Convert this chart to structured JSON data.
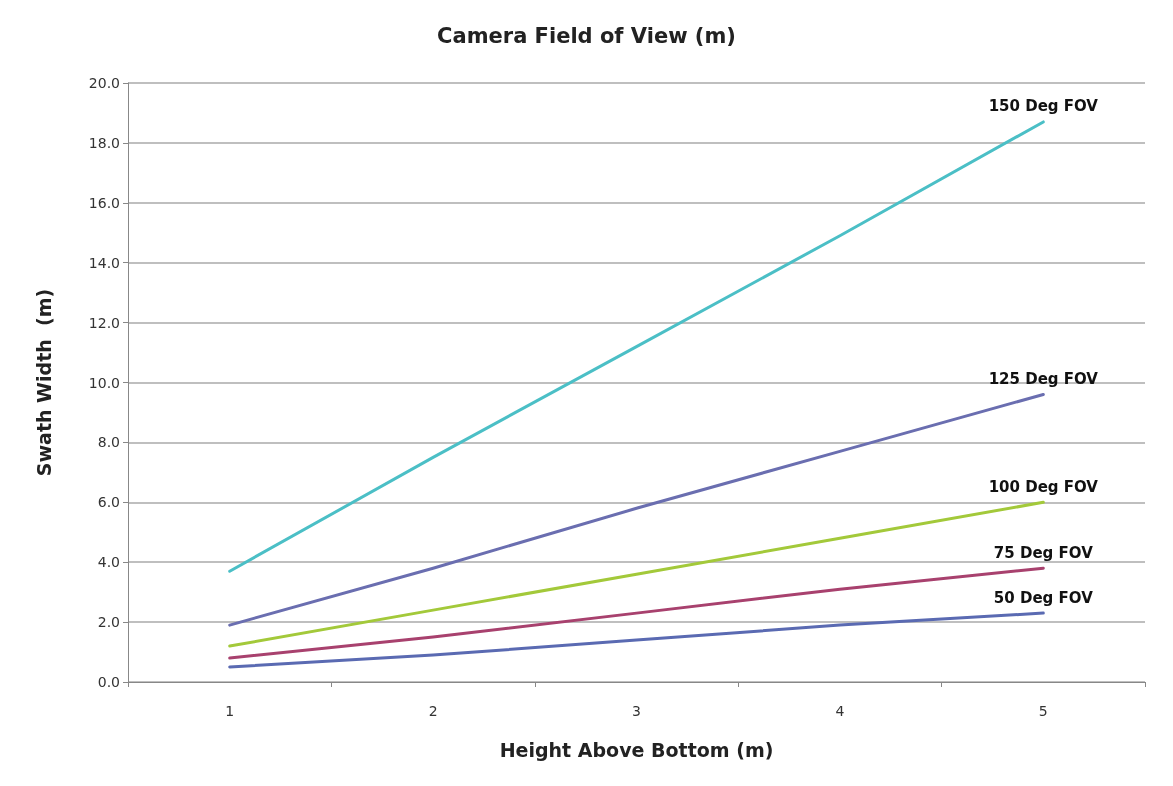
{
  "chart_data": {
    "type": "line",
    "title": "Camera Field of View (m)",
    "xlabel": "Height Above Bottom (m)",
    "ylabel": "Swath Width  (m)",
    "categories": [
      "1",
      "2",
      "3",
      "4",
      "5"
    ],
    "series": [
      {
        "name": "150 Deg FOV",
        "color": "#4bbfc6",
        "values": [
          3.7,
          7.5,
          11.2,
          14.9,
          18.7
        ]
      },
      {
        "name": "125 Deg FOV",
        "color": "#6a6eb0",
        "values": [
          1.9,
          3.8,
          5.8,
          7.7,
          9.6
        ]
      },
      {
        "name": "100 Deg FOV",
        "color": "#a3c93a",
        "values": [
          1.2,
          2.4,
          3.6,
          4.8,
          6.0
        ]
      },
      {
        "name": "75 Deg FOV",
        "color": "#a8416e",
        "values": [
          0.8,
          1.5,
          2.3,
          3.1,
          3.8
        ]
      },
      {
        "name": "50 Deg FOV",
        "color": "#5a6ab2",
        "values": [
          0.5,
          0.9,
          1.4,
          1.9,
          2.3
        ]
      }
    ],
    "ylim": [
      0,
      20
    ],
    "yticks": [
      {
        "value": 0,
        "label": "0.0"
      },
      {
        "value": 2,
        "label": "2.0"
      },
      {
        "value": 4,
        "label": "4.0"
      },
      {
        "value": 6,
        "label": "6.0"
      },
      {
        "value": 8,
        "label": "8.0"
      },
      {
        "value": 10,
        "label": "10.0"
      },
      {
        "value": 12,
        "label": "12.0"
      },
      {
        "value": 14,
        "label": "14.0"
      },
      {
        "value": 16,
        "label": "16.0"
      },
      {
        "value": 18,
        "label": "18.0"
      },
      {
        "value": 20,
        "label": "20.0"
      }
    ],
    "grid": "y",
    "legend": false,
    "marker": "none",
    "line_style": "solid"
  }
}
